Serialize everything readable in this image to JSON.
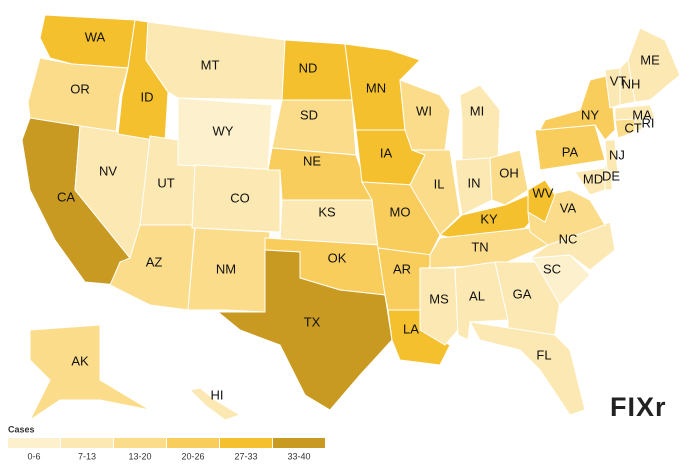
{
  "legend": {
    "title": "Cases",
    "bins": [
      {
        "label": "0-6",
        "color": "#fdf1cd"
      },
      {
        "label": "7-13",
        "color": "#fce8b2"
      },
      {
        "label": "13-20",
        "color": "#fadc8a"
      },
      {
        "label": "20-26",
        "color": "#f8cd5c"
      },
      {
        "label": "27-33",
        "color": "#f5c02d"
      },
      {
        "label": "33-40",
        "color": "#c99a21"
      }
    ]
  },
  "states": [
    {
      "label": "WA",
      "cases": "27-33"
    },
    {
      "label": "OR",
      "cases": "13-20"
    },
    {
      "label": "CA",
      "cases": "33-40"
    },
    {
      "label": "NV",
      "cases": "7-13"
    },
    {
      "label": "ID",
      "cases": "27-33"
    },
    {
      "label": "UT",
      "cases": "7-13"
    },
    {
      "label": "AZ",
      "cases": "13-20"
    },
    {
      "label": "MT",
      "cases": "7-13"
    },
    {
      "label": "WY",
      "cases": "0-6"
    },
    {
      "label": "CO",
      "cases": "7-13"
    },
    {
      "label": "NM",
      "cases": "13-20"
    },
    {
      "label": "ND",
      "cases": "27-33"
    },
    {
      "label": "SD",
      "cases": "13-20"
    },
    {
      "label": "NE",
      "cases": "20-26"
    },
    {
      "label": "KS",
      "cases": "7-13"
    },
    {
      "label": "OK",
      "cases": "20-26"
    },
    {
      "label": "TX",
      "cases": "33-40"
    },
    {
      "label": "MN",
      "cases": "27-33"
    },
    {
      "label": "IA",
      "cases": "27-33"
    },
    {
      "label": "MO",
      "cases": "20-26"
    },
    {
      "label": "AR",
      "cases": "20-26"
    },
    {
      "label": "LA",
      "cases": "27-33"
    },
    {
      "label": "WI",
      "cases": "13-20"
    },
    {
      "label": "IL",
      "cases": "13-20"
    },
    {
      "label": "MI",
      "cases": "7-13"
    },
    {
      "label": "IN",
      "cases": "7-13"
    },
    {
      "label": "OH",
      "cases": "13-20"
    },
    {
      "label": "KY",
      "cases": "27-33"
    },
    {
      "label": "TN",
      "cases": "13-20"
    },
    {
      "label": "MS",
      "cases": "7-13"
    },
    {
      "label": "AL",
      "cases": "7-13"
    },
    {
      "label": "GA",
      "cases": "7-13"
    },
    {
      "label": "FL",
      "cases": "7-13"
    },
    {
      "label": "SC",
      "cases": "0-6"
    },
    {
      "label": "NC",
      "cases": "7-13"
    },
    {
      "label": "VA",
      "cases": "13-20"
    },
    {
      "label": "WV",
      "cases": "27-33"
    },
    {
      "label": "PA",
      "cases": "20-26"
    },
    {
      "label": "NY",
      "cases": "20-26"
    },
    {
      "label": "MD",
      "cases": "7-13"
    },
    {
      "label": "DE",
      "cases": "7-13"
    },
    {
      "label": "NJ",
      "cases": "7-13"
    },
    {
      "label": "CT",
      "cases": "13-20"
    },
    {
      "label": "RI",
      "cases": "7-13"
    },
    {
      "label": "MA",
      "cases": "7-13"
    },
    {
      "label": "VT",
      "cases": "7-13"
    },
    {
      "label": "NH",
      "cases": "7-13"
    },
    {
      "label": "ME",
      "cases": "7-13"
    },
    {
      "label": "AK",
      "cases": "13-20"
    },
    {
      "label": "HI",
      "cases": "7-13"
    }
  ],
  "logo": "FIXr"
}
